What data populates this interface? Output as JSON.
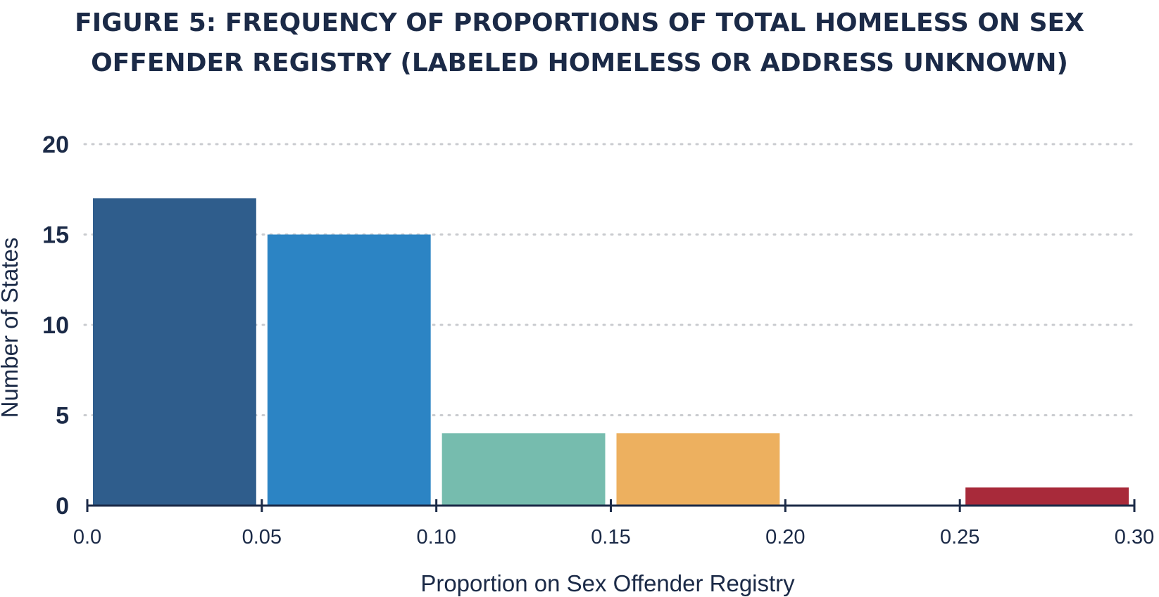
{
  "chart_data": {
    "type": "bar",
    "title": "FIGURE 5: FREQUENCY OF PROPORTIONS OF TOTAL HOMELESS ON SEX OFFENDER REGISTRY (LABELED HOMELESS OR ADDRESS UNKNOWN)",
    "xlabel": "Proportion on Sex Offender Registry",
    "ylabel": "Number of States",
    "xlim": [
      0,
      0.3
    ],
    "ylim": [
      0,
      20
    ],
    "x_ticks": [
      "0.0",
      "0.05",
      "0.10",
      "0.15",
      "0.20",
      "0.25",
      "0.30"
    ],
    "y_ticks": [
      "0",
      "5",
      "10",
      "15",
      "20"
    ],
    "grid": "horizontal dotted",
    "bins": [
      {
        "start": 0.0,
        "end": 0.05,
        "value": 17,
        "color": "#2f5d8c"
      },
      {
        "start": 0.05,
        "end": 0.1,
        "value": 15,
        "color": "#2c84c4"
      },
      {
        "start": 0.1,
        "end": 0.15,
        "value": 4,
        "color": "#76bcae"
      },
      {
        "start": 0.15,
        "end": 0.2,
        "value": 4,
        "color": "#edb05f"
      },
      {
        "start": 0.2,
        "end": 0.25,
        "value": 0,
        "color": "#ffffff"
      },
      {
        "start": 0.25,
        "end": 0.3,
        "value": 1,
        "color": "#a82a3a"
      }
    ],
    "colors": {
      "text": "#1b2a47",
      "axis": "#1b2a47",
      "grid": "#c9cbcf"
    }
  }
}
